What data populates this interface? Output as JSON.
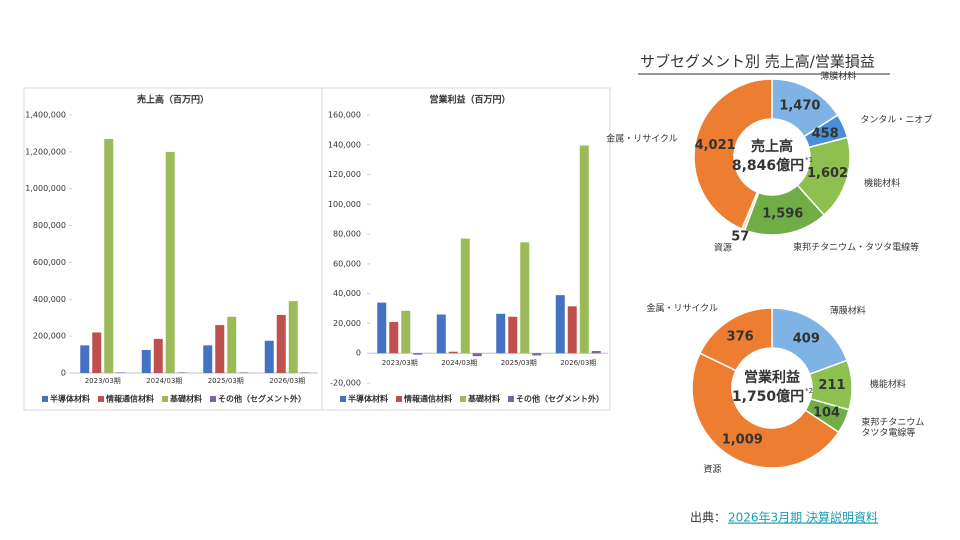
{
  "segment_title": "サブセグメント別 売上高/営業損益",
  "source": {
    "prefix": "出典：",
    "link": "2026年3月期 決算説明資料"
  },
  "chart_data": [
    {
      "type": "bar",
      "title": "売上高（百万円）",
      "categories": [
        "2023/03期",
        "2024/03期",
        "2025/03期",
        "2026/03期"
      ],
      "series": [
        {
          "name": "半導体材料",
          "color": "#4472c4",
          "values": [
            150000,
            125000,
            150000,
            175000
          ]
        },
        {
          "name": "情報通信材料",
          "color": "#c0504d",
          "values": [
            220000,
            185000,
            260000,
            315000
          ]
        },
        {
          "name": "基礎材料",
          "color": "#9bbb59",
          "values": [
            1270000,
            1200000,
            305000,
            390000
          ]
        },
        {
          "name": "その他（セグメント外）",
          "color": "#8064a2",
          "values": [
            3000,
            3000,
            3000,
            3000
          ]
        }
      ],
      "ylim": [
        0,
        1400000
      ],
      "yticks": [
        0,
        {
          "value": 200000,
          "label": "200,000"
        },
        {
          "value": 400000,
          "label": "400,000"
        },
        {
          "value": 600000,
          "label": "600,000"
        },
        {
          "value": 800000,
          "label": "800,000"
        },
        {
          "value": 1000000,
          "label": "1,000,000"
        },
        {
          "value": 1200000,
          "label": "1,200,000"
        },
        {
          "value": 1400000,
          "label": "1,400,000"
        }
      ]
    },
    {
      "type": "bar",
      "title": "営業利益（百万円）",
      "categories": [
        "2023/03期",
        "2024/03期",
        "2025/03期",
        "2026/03期"
      ],
      "series": [
        {
          "name": "半導体材料",
          "color": "#4472c4",
          "values": [
            34000,
            26000,
            26500,
            39000
          ]
        },
        {
          "name": "情報通信材料",
          "color": "#c0504d",
          "values": [
            21000,
            1000,
            24500,
            31500
          ]
        },
        {
          "name": "基礎材料",
          "color": "#9bbb59",
          "values": [
            28500,
            77000,
            74500,
            139500
          ]
        },
        {
          "name": "その他（セグメント外）",
          "color": "#8064a2",
          "values": [
            -1000,
            -2000,
            -1500,
            1500
          ]
        }
      ],
      "ylim": [
        -20000,
        160000
      ],
      "yticks": [
        {
          "value": -20000,
          "label": "-20,000"
        },
        0,
        {
          "value": 20000,
          "label": "20,000"
        },
        {
          "value": 40000,
          "label": "40,000"
        },
        {
          "value": 60000,
          "label": "60,000"
        },
        {
          "value": 80000,
          "label": "80,000"
        },
        {
          "value": 100000,
          "label": "100,000"
        },
        {
          "value": 120000,
          "label": "120,000"
        },
        {
          "value": 140000,
          "label": "140,000"
        },
        {
          "value": 160000,
          "label": "160,000"
        }
      ]
    },
    {
      "type": "donut",
      "center_label": "売上高",
      "center_value": "8,846億円",
      "center_note": "*1",
      "categories": [
        "薄膜材料",
        "タンタル・ニオブ",
        "機能材料",
        "東邦チタニウム・タツタ電線等",
        "資源",
        "金属・リサイクル"
      ],
      "values": [
        1470,
        458,
        1602,
        1596,
        57,
        4021
      ],
      "value_labels": [
        "1,470",
        "458",
        "1,602",
        "1,596",
        "57",
        "4,021"
      ],
      "colors": [
        "#7fb2e5",
        "#4a8fd6",
        "#8dc04f",
        "#70ad47",
        "#e3dfa0",
        "#ed7d31"
      ]
    },
    {
      "type": "donut",
      "center_label": "営業利益",
      "center_value": "1,750億円",
      "center_note": "*2",
      "categories": [
        "薄膜材料",
        "機能材料",
        "東邦チタニウム\nタツタ電線等",
        "資源",
        "金属・リサイクル"
      ],
      "values": [
        409,
        211,
        104,
        1009,
        376
      ],
      "value_labels": [
        "409",
        "211",
        "104",
        "1,009",
        "376"
      ],
      "colors": [
        "#7fb2e5",
        "#8dc04f",
        "#70ad47",
        "#ed7d31",
        "#ed7d31"
      ]
    }
  ]
}
